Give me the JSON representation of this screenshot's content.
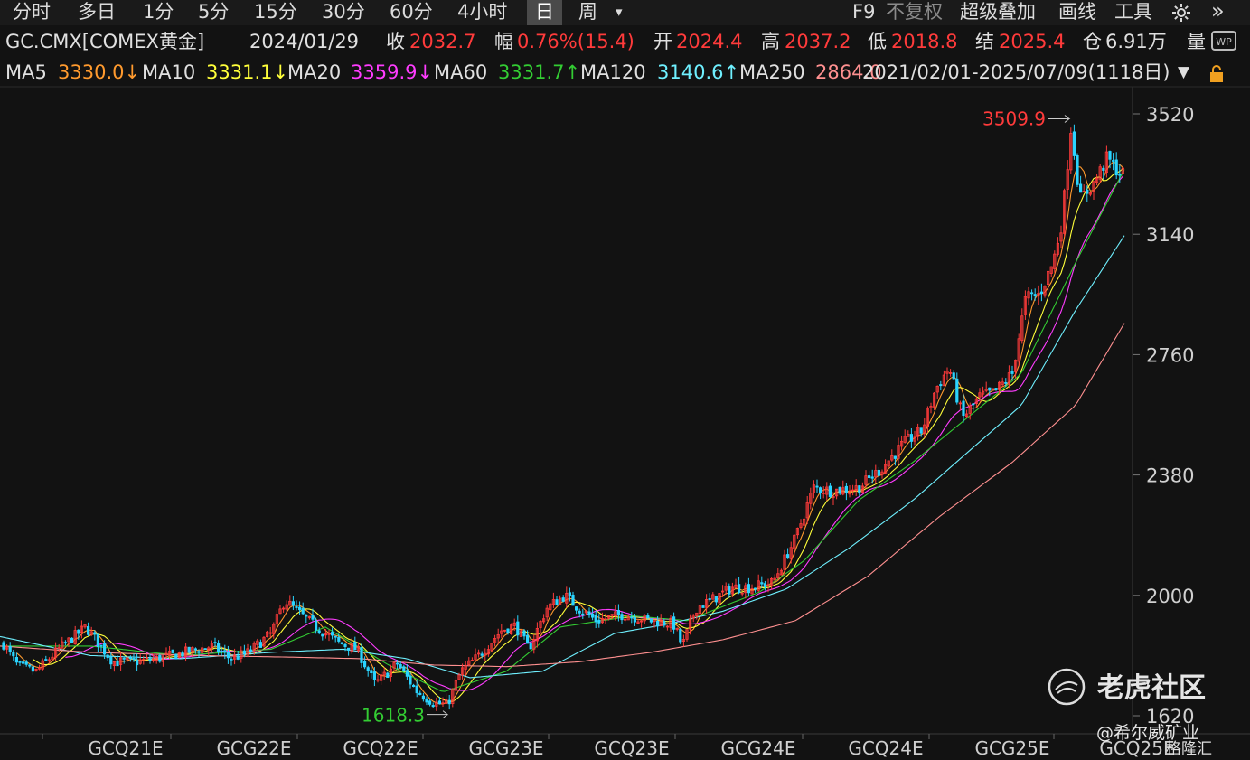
{
  "toolbar": {
    "tabs": [
      "分时",
      "多日",
      "1分",
      "5分",
      "15分",
      "30分",
      "60分",
      "4小时",
      "日",
      "周"
    ],
    "active_tab": "日",
    "more_symbol": "▾",
    "f9": "F9",
    "no_adjust": "不复权",
    "overlay": "超级叠加",
    "draw": "画线",
    "tools": "工具",
    "expand": "»"
  },
  "quote": {
    "symbol": "GC.CMX[COMEX黄金]",
    "date": "2024/01/29",
    "close_label": "收",
    "close": "2032.7",
    "change_label": "幅",
    "change": "0.76%(15.4)",
    "open_label": "开",
    "open": "2024.4",
    "high_label": "高",
    "high": "2037.2",
    "low_label": "低",
    "low": "2018.8",
    "settle_label": "结",
    "settle": "2025.4",
    "oi_label": "仓",
    "oi": "6.91万",
    "volume_label": "量"
  },
  "ma_bar": {
    "items": [
      {
        "label": "MA5",
        "value": "3330.0↓",
        "color": "#ff9a2e"
      },
      {
        "label": "MA10",
        "value": "3331.1↓",
        "color": "#ffff3a"
      },
      {
        "label": "MA20",
        "value": "3359.9↓",
        "color": "#ff3cff"
      },
      {
        "label": "MA60",
        "value": "3331.7↑",
        "color": "#33cc33"
      },
      {
        "label": "MA120",
        "value": "3140.6↑",
        "color": "#6ff0ff"
      },
      {
        "label": "MA250",
        "value": "2864.0",
        "color": "#ff9090"
      }
    ],
    "range": "2021/02/01-2025/07/09(1118日)"
  },
  "colors": {
    "up": "#ff3b3b",
    "down": "#2ad4ff",
    "background": "#121212",
    "ma5": "#ff9a2e",
    "ma10": "#ffff3a",
    "ma20": "#ff3cff",
    "ma60": "#33cc33",
    "ma120": "#6ff0ff",
    "ma250": "#ff9090",
    "max_label": "#ff3b3b",
    "min_label": "#33cc33"
  },
  "chart_data": {
    "type": "candlestick",
    "y_ticks": [
      3520,
      3140,
      2760,
      2380,
      2000,
      1620
    ],
    "x_ticks": [
      "GCQ21E",
      "GCG22E",
      "GCQ22E",
      "GCG23E",
      "GCQ23E",
      "GCG24E",
      "GCQ24E",
      "GCG25E",
      "GCQ25E"
    ],
    "max_marker": {
      "value": 3509.9
    },
    "min_marker": {
      "value": 1618.3
    },
    "trend_points": [
      [
        0,
        1865
      ],
      [
        20,
        1775
      ],
      [
        40,
        1760
      ],
      [
        65,
        1830
      ],
      [
        95,
        1900
      ],
      [
        125,
        1790
      ],
      [
        150,
        1790
      ],
      [
        175,
        1800
      ],
      [
        205,
        1820
      ],
      [
        235,
        1840
      ],
      [
        255,
        1800
      ],
      [
        275,
        1820
      ],
      [
        300,
        1880
      ],
      [
        315,
        1985
      ],
      [
        335,
        1935
      ],
      [
        350,
        1900
      ],
      [
        375,
        1850
      ],
      [
        395,
        1830
      ],
      [
        415,
        1720
      ],
      [
        440,
        1785
      ],
      [
        460,
        1700
      ],
      [
        480,
        1660
      ],
      [
        495,
        1655
      ],
      [
        510,
        1760
      ],
      [
        530,
        1810
      ],
      [
        555,
        1890
      ],
      [
        570,
        1905
      ],
      [
        585,
        1830
      ],
      [
        605,
        1960
      ],
      [
        625,
        2000
      ],
      [
        640,
        1960
      ],
      [
        660,
        1920
      ],
      [
        690,
        1940
      ],
      [
        720,
        1920
      ],
      [
        745,
        1910
      ],
      [
        755,
        1840
      ],
      [
        770,
        1960
      ],
      [
        790,
        1990
      ],
      [
        810,
        2025
      ],
      [
        830,
        2025
      ],
      [
        855,
        2040
      ],
      [
        880,
        2180
      ],
      [
        900,
        2340
      ],
      [
        920,
        2330
      ],
      [
        950,
        2340
      ],
      [
        975,
        2400
      ],
      [
        1000,
        2480
      ],
      [
        1020,
        2520
      ],
      [
        1035,
        2650
      ],
      [
        1050,
        2720
      ],
      [
        1065,
        2560
      ],
      [
        1085,
        2630
      ],
      [
        1100,
        2640
      ],
      [
        1120,
        2700
      ],
      [
        1135,
        2940
      ],
      [
        1150,
        2950
      ],
      [
        1165,
        3050
      ],
      [
        1175,
        3180
      ],
      [
        1185,
        3480
      ],
      [
        1195,
        3250
      ],
      [
        1210,
        3300
      ],
      [
        1225,
        3380
      ],
      [
        1240,
        3330
      ]
    ],
    "ma60_points": [
      [
        0,
        1840
      ],
      [
        100,
        1840
      ],
      [
        200,
        1810
      ],
      [
        300,
        1830
      ],
      [
        360,
        1900
      ],
      [
        430,
        1780
      ],
      [
        490,
        1695
      ],
      [
        560,
        1760
      ],
      [
        620,
        1900
      ],
      [
        700,
        1935
      ],
      [
        760,
        1920
      ],
      [
        840,
        2010
      ],
      [
        890,
        2110
      ],
      [
        950,
        2300
      ],
      [
        1010,
        2420
      ],
      [
        1070,
        2560
      ],
      [
        1130,
        2700
      ],
      [
        1190,
        3050
      ],
      [
        1245,
        3350
      ]
    ],
    "ma120_points": [
      [
        0,
        1870
      ],
      [
        100,
        1810
      ],
      [
        200,
        1800
      ],
      [
        300,
        1820
      ],
      [
        380,
        1830
      ],
      [
        450,
        1800
      ],
      [
        520,
        1740
      ],
      [
        600,
        1760
      ],
      [
        680,
        1880
      ],
      [
        740,
        1910
      ],
      [
        800,
        1950
      ],
      [
        870,
        2020
      ],
      [
        940,
        2150
      ],
      [
        1010,
        2300
      ],
      [
        1070,
        2450
      ],
      [
        1130,
        2600
      ],
      [
        1190,
        2900
      ],
      [
        1245,
        3140
      ]
    ],
    "ma250_points": [
      [
        0,
        1840
      ],
      [
        100,
        1820
      ],
      [
        220,
        1810
      ],
      [
        320,
        1805
      ],
      [
        400,
        1800
      ],
      [
        480,
        1780
      ],
      [
        560,
        1775
      ],
      [
        640,
        1790
      ],
      [
        720,
        1820
      ],
      [
        800,
        1860
      ],
      [
        880,
        1920
      ],
      [
        960,
        2060
      ],
      [
        1040,
        2250
      ],
      [
        1120,
        2420
      ],
      [
        1190,
        2600
      ],
      [
        1245,
        2864
      ]
    ]
  },
  "watermark": {
    "text": "老虎社区"
  },
  "credit": {
    "text": "@希尔威矿业"
  },
  "brand": {
    "text": "格隆汇"
  }
}
